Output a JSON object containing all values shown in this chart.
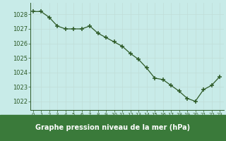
{
  "x": [
    0,
    1,
    2,
    3,
    4,
    5,
    6,
    7,
    8,
    9,
    10,
    11,
    12,
    13,
    14,
    15,
    16,
    17,
    18,
    19,
    20,
    21,
    22,
    23
  ],
  "y": [
    1028.2,
    1028.2,
    1027.8,
    1027.2,
    1027.0,
    1027.0,
    1027.0,
    1027.2,
    1026.7,
    1026.4,
    1026.1,
    1025.8,
    1025.3,
    1024.9,
    1024.3,
    1023.6,
    1023.5,
    1023.1,
    1022.7,
    1022.2,
    1022.0,
    1022.8,
    1023.1,
    1023.7
  ],
  "line_color": "#2d5a27",
  "marker_color": "#2d5a27",
  "bg_color": "#c8ebe8",
  "grid_color": "#c0ddd8",
  "xlabel": "Graphe pression niveau de la mer (hPa)",
  "xlabel_color": "#ffffff",
  "tick_color": "#2d5a27",
  "ytick_values": [
    1022,
    1023,
    1024,
    1025,
    1026,
    1027,
    1028
  ],
  "ylim_min": 1021.4,
  "ylim_max": 1028.8,
  "xlim_min": -0.3,
  "xlim_max": 23.5,
  "bottom_bar_color": "#3a7a3a",
  "spine_color": "#2d5a27"
}
